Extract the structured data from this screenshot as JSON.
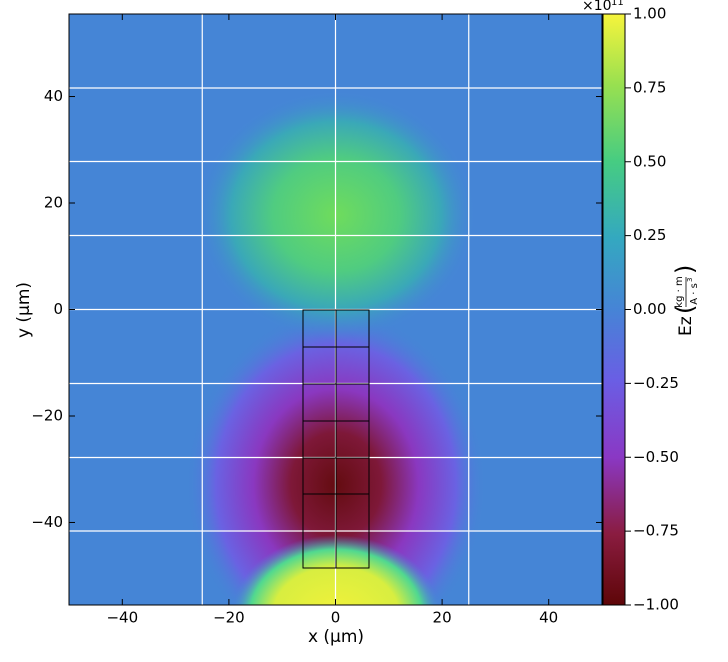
{
  "chart_data": {
    "type": "heatmap",
    "xlabel": "x  (μm)",
    "ylabel": "y  (μm)",
    "xlim": [
      -50,
      50
    ],
    "ylim": [
      -55.5,
      55.5
    ],
    "xticks": [
      {
        "value": -40,
        "label": "−40"
      },
      {
        "value": -20,
        "label": "−20"
      },
      0,
      20,
      40
    ],
    "yticks": [
      {
        "value": -40,
        "label": "−40"
      },
      {
        "value": -20,
        "label": "−20"
      },
      0,
      20,
      40
    ],
    "grid_lines": {
      "x": [
        -25,
        0,
        25
      ],
      "y": [
        41.6,
        27.8,
        13.9,
        0,
        -13.9,
        -27.8,
        -41.6
      ]
    },
    "colorbar": {
      "label": "Ez",
      "unit_numerator": "kg · m",
      "unit_denominator": "A · s",
      "unit_denominator_exponent": "3",
      "offset_base": "×10",
      "offset_exponent": "11",
      "lim": [
        -1,
        1
      ],
      "ticks": [
        {
          "value": -1,
          "label": "−1.00"
        },
        {
          "value": -0.75,
          "label": "−0.75"
        },
        {
          "value": -0.5,
          "label": "−0.50"
        },
        {
          "value": -0.25,
          "label": "−0.25"
        },
        {
          "value": 0,
          "label": "0.00"
        },
        {
          "value": 0.25,
          "label": "0.25"
        },
        {
          "value": 0.5,
          "label": "0.50"
        },
        {
          "value": 0.75,
          "label": "0.75"
        },
        {
          "value": 1,
          "label": "1.00"
        }
      ]
    }
  }
}
